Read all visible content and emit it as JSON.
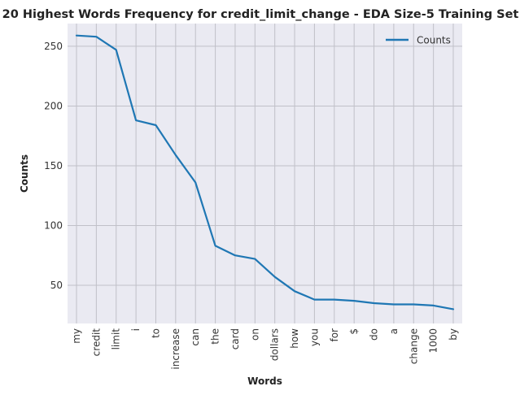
{
  "chart_data": {
    "type": "line",
    "title": "20 Highest Words Frequency for credit_limit_change - EDA Size-5 Training Set",
    "xlabel": "Words",
    "ylabel": "Counts",
    "categories": [
      "my",
      "credit",
      "limit",
      "i",
      "to",
      "increase",
      "can",
      "the",
      "card",
      "on",
      "dollars",
      "how",
      "you",
      "for",
      "$",
      "do",
      "a",
      "change",
      "1000",
      "by"
    ],
    "series": [
      {
        "name": "Counts",
        "values": [
          259,
          258,
          247,
          188,
          184,
          159,
          136,
          83,
          75,
          72,
          57,
          45,
          38,
          38,
          37,
          35,
          34,
          34,
          33,
          30
        ]
      }
    ],
    "ylim": [
      18,
      269
    ],
    "yticks": [
      50,
      100,
      150,
      200,
      250
    ],
    "grid": true,
    "legend_position": "top-right",
    "colors": {
      "line": "#1f77b4",
      "plot_background": "#eaeaf2",
      "grid": "#c0c0c8"
    }
  }
}
